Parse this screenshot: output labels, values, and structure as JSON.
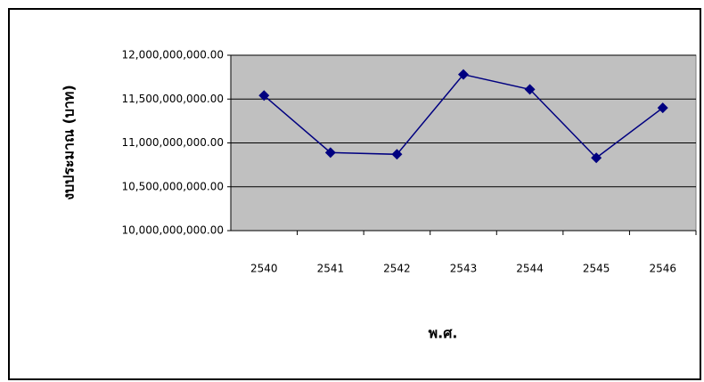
{
  "chart_data": {
    "type": "line",
    "ylabel": "งบประมาณ (บาท)",
    "xlabel": "พ.ศ.",
    "categories": [
      "2540",
      "2541",
      "2542",
      "2543",
      "2544",
      "2545",
      "2546"
    ],
    "series": [
      {
        "name": "งบประมาณ",
        "color": "#000080",
        "values": [
          11540000000,
          10890000000,
          10870000000,
          11780000000,
          11610000000,
          10830000000,
          11400000000
        ]
      }
    ],
    "ylim": [
      10000000000,
      12000000000
    ],
    "yticks": [
      {
        "value": 10000000000,
        "label": "10,000,000,000.00"
      },
      {
        "value": 10500000000,
        "label": "10,500,000,000.00"
      },
      {
        "value": 11000000000,
        "label": "11,000,000,000.00"
      },
      {
        "value": 11500000000,
        "label": "11,500,000,000.00"
      },
      {
        "value": 12000000000,
        "label": "12,000,000,000.00"
      }
    ],
    "grid": true,
    "plot_background": "#c0c0c0"
  }
}
